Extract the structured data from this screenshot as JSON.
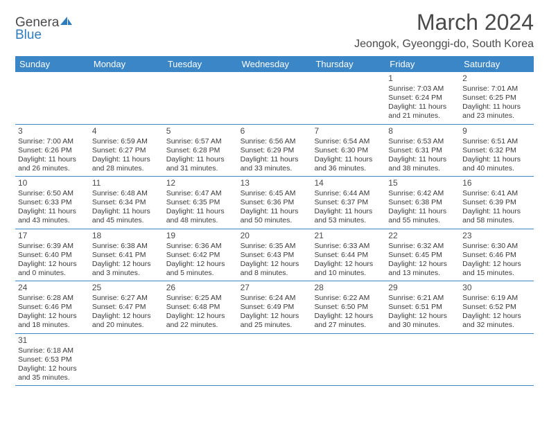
{
  "logo": {
    "textDark": "Genera",
    "textBlue": "Blue",
    "accentColor": "#2e7cc0"
  },
  "header": {
    "title": "March 2024",
    "location": "Jeongok, Gyeonggi-do, South Korea"
  },
  "colors": {
    "headerBar": "#3b86c6",
    "rowBorder": "#3b86c6",
    "text": "#3a3a3a",
    "titleText": "#4a4a4a"
  },
  "dayHeaders": [
    "Sunday",
    "Monday",
    "Tuesday",
    "Wednesday",
    "Thursday",
    "Friday",
    "Saturday"
  ],
  "weeks": [
    [
      null,
      null,
      null,
      null,
      null,
      {
        "n": "1",
        "sunrise": "Sunrise: 7:03 AM",
        "sunset": "Sunset: 6:24 PM",
        "daylight": "Daylight: 11 hours and 21 minutes."
      },
      {
        "n": "2",
        "sunrise": "Sunrise: 7:01 AM",
        "sunset": "Sunset: 6:25 PM",
        "daylight": "Daylight: 11 hours and 23 minutes."
      }
    ],
    [
      {
        "n": "3",
        "sunrise": "Sunrise: 7:00 AM",
        "sunset": "Sunset: 6:26 PM",
        "daylight": "Daylight: 11 hours and 26 minutes."
      },
      {
        "n": "4",
        "sunrise": "Sunrise: 6:59 AM",
        "sunset": "Sunset: 6:27 PM",
        "daylight": "Daylight: 11 hours and 28 minutes."
      },
      {
        "n": "5",
        "sunrise": "Sunrise: 6:57 AM",
        "sunset": "Sunset: 6:28 PM",
        "daylight": "Daylight: 11 hours and 31 minutes."
      },
      {
        "n": "6",
        "sunrise": "Sunrise: 6:56 AM",
        "sunset": "Sunset: 6:29 PM",
        "daylight": "Daylight: 11 hours and 33 minutes."
      },
      {
        "n": "7",
        "sunrise": "Sunrise: 6:54 AM",
        "sunset": "Sunset: 6:30 PM",
        "daylight": "Daylight: 11 hours and 36 minutes."
      },
      {
        "n": "8",
        "sunrise": "Sunrise: 6:53 AM",
        "sunset": "Sunset: 6:31 PM",
        "daylight": "Daylight: 11 hours and 38 minutes."
      },
      {
        "n": "9",
        "sunrise": "Sunrise: 6:51 AM",
        "sunset": "Sunset: 6:32 PM",
        "daylight": "Daylight: 11 hours and 40 minutes."
      }
    ],
    [
      {
        "n": "10",
        "sunrise": "Sunrise: 6:50 AM",
        "sunset": "Sunset: 6:33 PM",
        "daylight": "Daylight: 11 hours and 43 minutes."
      },
      {
        "n": "11",
        "sunrise": "Sunrise: 6:48 AM",
        "sunset": "Sunset: 6:34 PM",
        "daylight": "Daylight: 11 hours and 45 minutes."
      },
      {
        "n": "12",
        "sunrise": "Sunrise: 6:47 AM",
        "sunset": "Sunset: 6:35 PM",
        "daylight": "Daylight: 11 hours and 48 minutes."
      },
      {
        "n": "13",
        "sunrise": "Sunrise: 6:45 AM",
        "sunset": "Sunset: 6:36 PM",
        "daylight": "Daylight: 11 hours and 50 minutes."
      },
      {
        "n": "14",
        "sunrise": "Sunrise: 6:44 AM",
        "sunset": "Sunset: 6:37 PM",
        "daylight": "Daylight: 11 hours and 53 minutes."
      },
      {
        "n": "15",
        "sunrise": "Sunrise: 6:42 AM",
        "sunset": "Sunset: 6:38 PM",
        "daylight": "Daylight: 11 hours and 55 minutes."
      },
      {
        "n": "16",
        "sunrise": "Sunrise: 6:41 AM",
        "sunset": "Sunset: 6:39 PM",
        "daylight": "Daylight: 11 hours and 58 minutes."
      }
    ],
    [
      {
        "n": "17",
        "sunrise": "Sunrise: 6:39 AM",
        "sunset": "Sunset: 6:40 PM",
        "daylight": "Daylight: 12 hours and 0 minutes."
      },
      {
        "n": "18",
        "sunrise": "Sunrise: 6:38 AM",
        "sunset": "Sunset: 6:41 PM",
        "daylight": "Daylight: 12 hours and 3 minutes."
      },
      {
        "n": "19",
        "sunrise": "Sunrise: 6:36 AM",
        "sunset": "Sunset: 6:42 PM",
        "daylight": "Daylight: 12 hours and 5 minutes."
      },
      {
        "n": "20",
        "sunrise": "Sunrise: 6:35 AM",
        "sunset": "Sunset: 6:43 PM",
        "daylight": "Daylight: 12 hours and 8 minutes."
      },
      {
        "n": "21",
        "sunrise": "Sunrise: 6:33 AM",
        "sunset": "Sunset: 6:44 PM",
        "daylight": "Daylight: 12 hours and 10 minutes."
      },
      {
        "n": "22",
        "sunrise": "Sunrise: 6:32 AM",
        "sunset": "Sunset: 6:45 PM",
        "daylight": "Daylight: 12 hours and 13 minutes."
      },
      {
        "n": "23",
        "sunrise": "Sunrise: 6:30 AM",
        "sunset": "Sunset: 6:46 PM",
        "daylight": "Daylight: 12 hours and 15 minutes."
      }
    ],
    [
      {
        "n": "24",
        "sunrise": "Sunrise: 6:28 AM",
        "sunset": "Sunset: 6:46 PM",
        "daylight": "Daylight: 12 hours and 18 minutes."
      },
      {
        "n": "25",
        "sunrise": "Sunrise: 6:27 AM",
        "sunset": "Sunset: 6:47 PM",
        "daylight": "Daylight: 12 hours and 20 minutes."
      },
      {
        "n": "26",
        "sunrise": "Sunrise: 6:25 AM",
        "sunset": "Sunset: 6:48 PM",
        "daylight": "Daylight: 12 hours and 22 minutes."
      },
      {
        "n": "27",
        "sunrise": "Sunrise: 6:24 AM",
        "sunset": "Sunset: 6:49 PM",
        "daylight": "Daylight: 12 hours and 25 minutes."
      },
      {
        "n": "28",
        "sunrise": "Sunrise: 6:22 AM",
        "sunset": "Sunset: 6:50 PM",
        "daylight": "Daylight: 12 hours and 27 minutes."
      },
      {
        "n": "29",
        "sunrise": "Sunrise: 6:21 AM",
        "sunset": "Sunset: 6:51 PM",
        "daylight": "Daylight: 12 hours and 30 minutes."
      },
      {
        "n": "30",
        "sunrise": "Sunrise: 6:19 AM",
        "sunset": "Sunset: 6:52 PM",
        "daylight": "Daylight: 12 hours and 32 minutes."
      }
    ],
    [
      {
        "n": "31",
        "sunrise": "Sunrise: 6:18 AM",
        "sunset": "Sunset: 6:53 PM",
        "daylight": "Daylight: 12 hours and 35 minutes."
      },
      null,
      null,
      null,
      null,
      null,
      null
    ]
  ]
}
